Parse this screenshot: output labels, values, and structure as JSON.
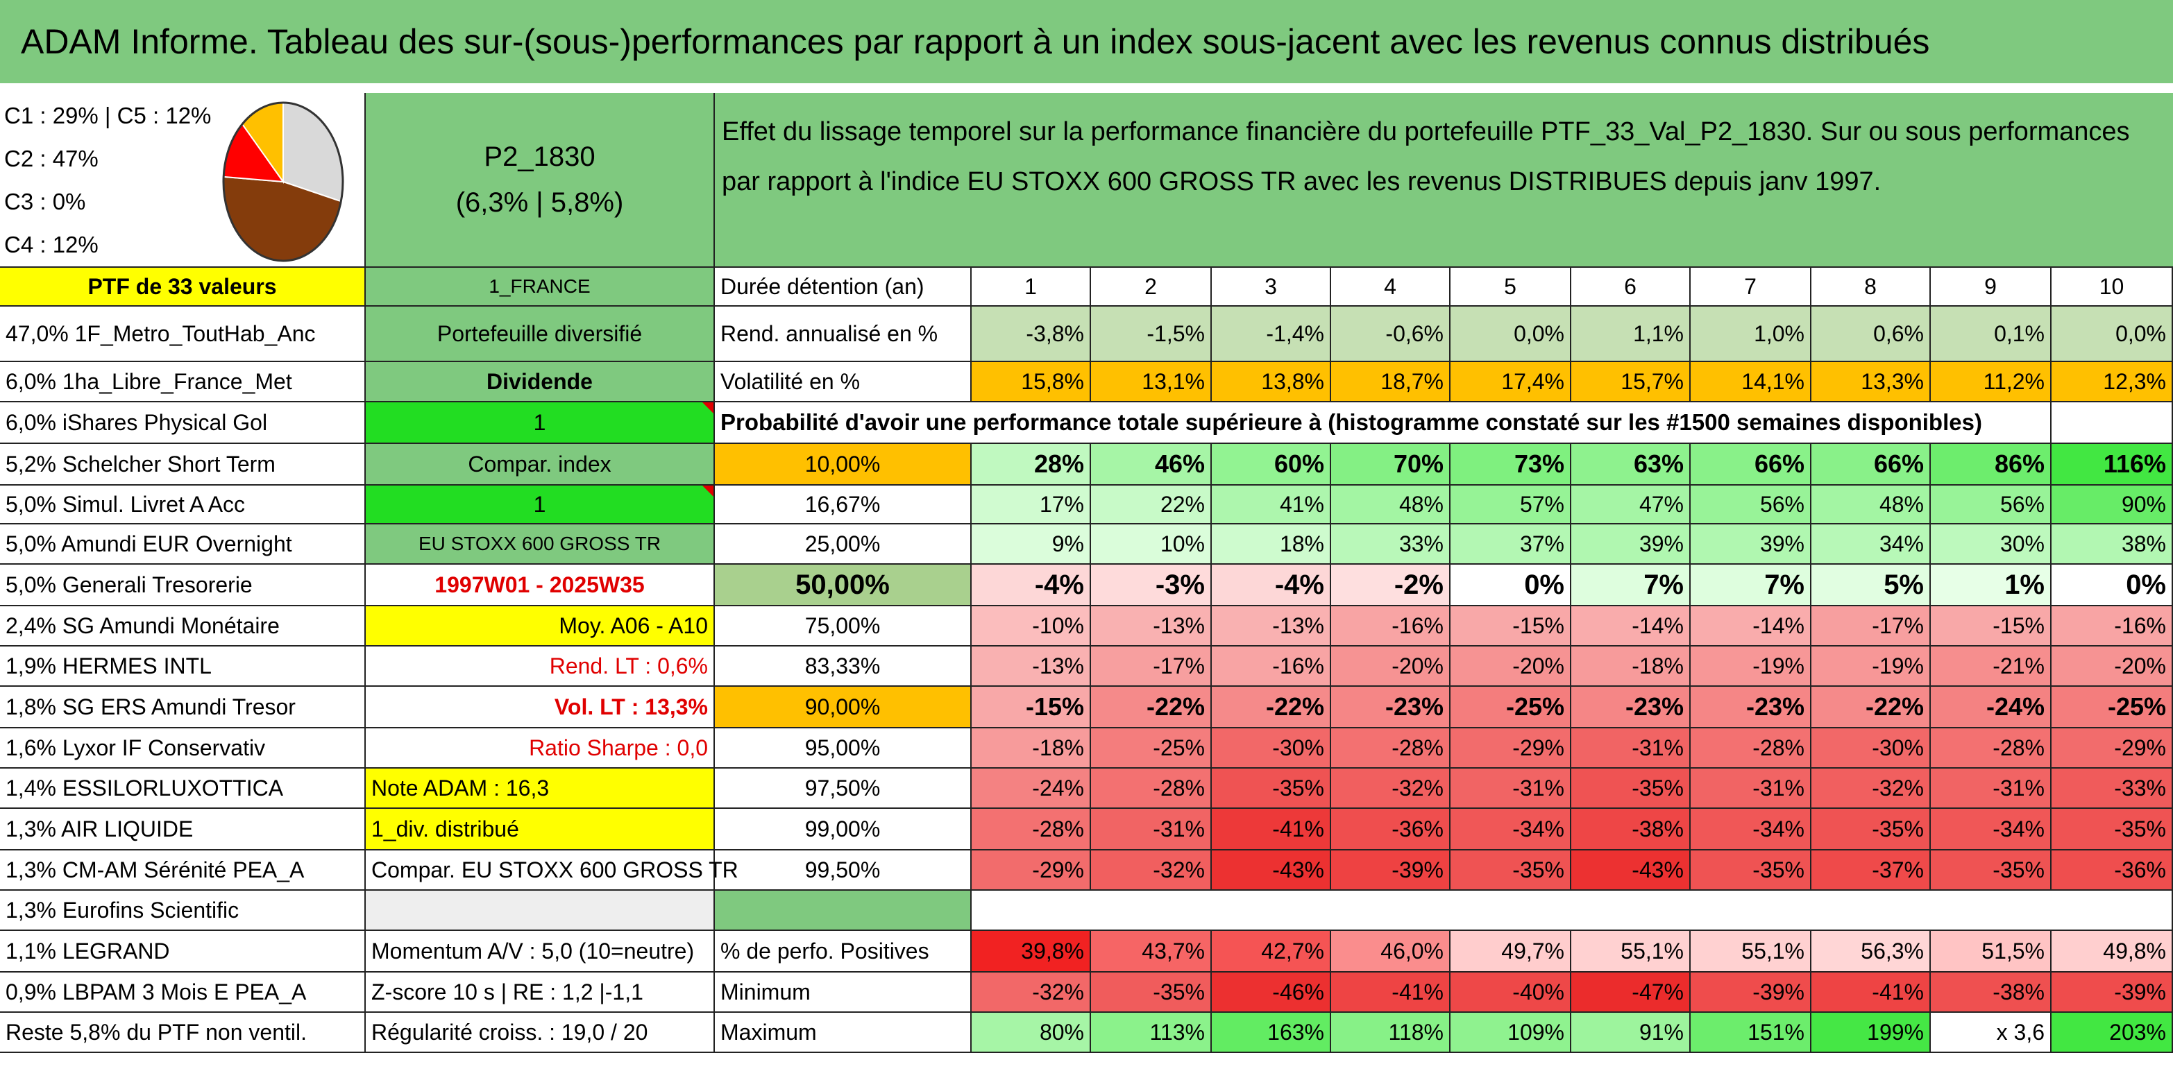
{
  "title": "ADAM Informe. Tableau des sur-(sous-)performances par rapport à un index sous-jacent avec les revenus connus distribués",
  "pie": {
    "labels": [
      "C1 : 29% | C5 : 12%",
      "C2 : 47%",
      "C3 : 0%",
      "C4 : 12%"
    ],
    "slices": [
      {
        "name": "C1",
        "value": 29,
        "color": "#d9d9d9"
      },
      {
        "name": "C2",
        "value": 47,
        "color": "#843c0c"
      },
      {
        "name": "C4",
        "value": 12,
        "color": "#ff0000"
      },
      {
        "name": "C5",
        "value": 12,
        "color": "#ffc000"
      }
    ]
  },
  "portfolio": {
    "name": "P2_1830",
    "perf": "(6,3% | 5,8%)"
  },
  "description": "Effet du lissage temporel sur la performance financière du portefeuille PTF_33_Val_P2_1830. Sur ou sous performances par rapport à l'indice EU STOXX 600 GROSS TR avec les revenus DISTRIBUES depuis janv 1997.",
  "holdings_header": "PTF de 33 valeurs",
  "holdings": [
    "47,0% 1F_Metro_ToutHab_Anc",
    "6,0% 1ha_Libre_France_Met",
    "6,0% iShares Physical Gol",
    "5,2% Schelcher Short Term",
    "5,0% Simul. Livret A Acc",
    "5,0% Amundi EUR Overnight",
    "5,0% Generali Tresorerie",
    "2,4% SG Amundi Monétaire",
    "1,9% HERMES INTL",
    "1,8% SG ERS Amundi Tresor",
    "1,6% Lyxor IF Conservativ",
    "1,4% ESSILORLUXOTTICA",
    "1,3% AIR LIQUIDE",
    "1,3% CM-AM Sérénité PEA_A",
    "1,3% Eurofins Scientific",
    "1,1% LEGRAND",
    "0,9% LBPAM 3 Mois E PEA_A",
    "Reste 5,8% du PTF non ventil."
  ],
  "info": [
    "1_FRANCE",
    "Portefeuille diversifié",
    "Dividende",
    "1",
    "Compar. index",
    "1",
    "EU STOXX 600 GROSS TR",
    "1997W01 - 2025W35",
    "Moy. A06 - A10",
    "Rend. LT : 0,6%",
    "Vol. LT : 13,3%",
    "Ratio Sharpe : 0,0",
    "Note ADAM : 16,3",
    "1_div. distribué",
    "Compar. EU STOXX 600 GROSS TR",
    "",
    "Momentum A/V : 5,0 (10=neutre)",
    "Z-score 10 s | RE : 1,2 |-1,1",
    "Régularité croiss. : 19,0 / 20"
  ],
  "years_label": "Durée détention (an)",
  "years": [
    "1",
    "2",
    "3",
    "4",
    "5",
    "6",
    "7",
    "8",
    "9",
    "10"
  ],
  "rend_label": "Rend. annualisé en %",
  "rend": [
    "-3,8%",
    "-1,5%",
    "-1,4%",
    "-0,6%",
    "0,0%",
    "1,1%",
    "1,0%",
    "0,6%",
    "0,1%",
    "0,0%"
  ],
  "vol_label": "Volatilité en %",
  "vol": [
    "15,8%",
    "13,1%",
    "13,8%",
    "18,7%",
    "17,4%",
    "15,7%",
    "14,1%",
    "13,3%",
    "11,2%",
    "12,3%"
  ],
  "prob_title": "Probabilité d'avoir une performance totale supérieure à (histogramme constaté sur les #1500 semaines disponibles)",
  "quantiles": [
    "10,00%",
    "16,67%",
    "25,00%",
    "50,00%",
    "75,00%",
    "83,33%",
    "90,00%",
    "95,00%",
    "97,50%",
    "99,00%",
    "99,50%"
  ],
  "prob_rows": [
    [
      "28%",
      "46%",
      "60%",
      "70%",
      "73%",
      "63%",
      "66%",
      "66%",
      "86%",
      "116%"
    ],
    [
      "17%",
      "22%",
      "41%",
      "48%",
      "57%",
      "47%",
      "56%",
      "48%",
      "56%",
      "90%"
    ],
    [
      "9%",
      "10%",
      "18%",
      "33%",
      "37%",
      "39%",
      "39%",
      "34%",
      "30%",
      "38%"
    ],
    [
      "-4%",
      "-3%",
      "-4%",
      "-2%",
      "0%",
      "7%",
      "7%",
      "5%",
      "1%",
      "0%"
    ],
    [
      "-10%",
      "-13%",
      "-13%",
      "-16%",
      "-15%",
      "-14%",
      "-14%",
      "-17%",
      "-15%",
      "-16%"
    ],
    [
      "-13%",
      "-17%",
      "-16%",
      "-20%",
      "-20%",
      "-18%",
      "-19%",
      "-19%",
      "-21%",
      "-20%"
    ],
    [
      "-15%",
      "-22%",
      "-22%",
      "-23%",
      "-25%",
      "-23%",
      "-23%",
      "-22%",
      "-24%",
      "-25%"
    ],
    [
      "-18%",
      "-25%",
      "-30%",
      "-28%",
      "-29%",
      "-31%",
      "-28%",
      "-30%",
      "-28%",
      "-29%"
    ],
    [
      "-24%",
      "-28%",
      "-35%",
      "-32%",
      "-31%",
      "-35%",
      "-31%",
      "-32%",
      "-31%",
      "-33%"
    ],
    [
      "-28%",
      "-31%",
      "-41%",
      "-36%",
      "-34%",
      "-38%",
      "-34%",
      "-35%",
      "-34%",
      "-35%"
    ],
    [
      "-29%",
      "-32%",
      "-43%",
      "-39%",
      "-35%",
      "-43%",
      "-35%",
      "-37%",
      "-35%",
      "-36%"
    ]
  ],
  "pos_label": "% de perfo. Positives",
  "pos": [
    "39,8%",
    "43,7%",
    "42,7%",
    "46,0%",
    "49,7%",
    "55,1%",
    "55,1%",
    "56,3%",
    "51,5%",
    "49,8%"
  ],
  "min_label": "Minimum",
  "min": [
    "-32%",
    "-35%",
    "-46%",
    "-41%",
    "-40%",
    "-47%",
    "-39%",
    "-41%",
    "-38%",
    "-39%"
  ],
  "max_label": "Maximum",
  "max": [
    "80%",
    "113%",
    "163%",
    "118%",
    "109%",
    "91%",
    "151%",
    "199%",
    "x 3,6",
    "203%"
  ],
  "colors": {
    "title_green": "#7fc97f",
    "yellow": "#ffff00",
    "lime": "#22dd22",
    "orange": "#ffc000",
    "red_text": "#e00000"
  }
}
